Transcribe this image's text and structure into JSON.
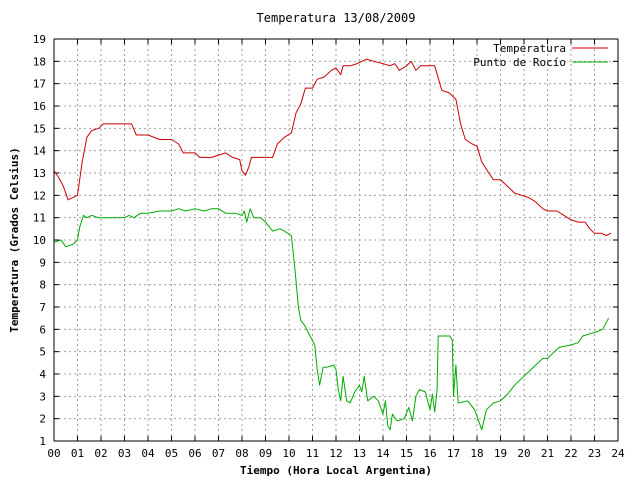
{
  "chart_data": {
    "type": "line",
    "title": "Temperatura 13/08/2009",
    "xlabel": "Tiempo (Hora Local Argentina)",
    "ylabel": "Temperatura (Grados Celsius)",
    "xlim": [
      0,
      24
    ],
    "ylim": [
      1,
      19
    ],
    "grid": true,
    "legend_position": "top-right",
    "x_ticks": [
      {
        "value": 0,
        "label": "00"
      },
      {
        "value": 1,
        "label": "01"
      },
      {
        "value": 2,
        "label": "02"
      },
      {
        "value": 3,
        "label": "03"
      },
      {
        "value": 4,
        "label": "04"
      },
      {
        "value": 5,
        "label": "05"
      },
      {
        "value": 6,
        "label": "06"
      },
      {
        "value": 7,
        "label": "07"
      },
      {
        "value": 8,
        "label": "08"
      },
      {
        "value": 9,
        "label": "09"
      },
      {
        "value": 10,
        "label": "10"
      },
      {
        "value": 11,
        "label": "11"
      },
      {
        "value": 12,
        "label": "12"
      },
      {
        "value": 13,
        "label": "13"
      },
      {
        "value": 14,
        "label": "14"
      },
      {
        "value": 15,
        "label": "15"
      },
      {
        "value": 16,
        "label": "16"
      },
      {
        "value": 17,
        "label": "17"
      },
      {
        "value": 18,
        "label": "18"
      },
      {
        "value": 19,
        "label": "19"
      },
      {
        "value": 20,
        "label": "20"
      },
      {
        "value": 21,
        "label": "21"
      },
      {
        "value": 22,
        "label": "22"
      },
      {
        "value": 23,
        "label": "23"
      },
      {
        "value": 24,
        "label": "24"
      }
    ],
    "y_ticks": [
      {
        "value": 1,
        "label": "1"
      },
      {
        "value": 2,
        "label": "2"
      },
      {
        "value": 3,
        "label": "3"
      },
      {
        "value": 4,
        "label": "4"
      },
      {
        "value": 5,
        "label": "5"
      },
      {
        "value": 6,
        "label": "6"
      },
      {
        "value": 7,
        "label": "7"
      },
      {
        "value": 8,
        "label": "8"
      },
      {
        "value": 9,
        "label": "9"
      },
      {
        "value": 10,
        "label": "10"
      },
      {
        "value": 11,
        "label": "11"
      },
      {
        "value": 12,
        "label": "12"
      },
      {
        "value": 13,
        "label": "13"
      },
      {
        "value": 14,
        "label": "14"
      },
      {
        "value": 15,
        "label": "15"
      },
      {
        "value": 16,
        "label": "16"
      },
      {
        "value": 17,
        "label": "17"
      },
      {
        "value": 18,
        "label": "18"
      },
      {
        "value": 19,
        "label": "19"
      }
    ],
    "series": [
      {
        "name": "Temperatura",
        "color": "#cc0000",
        "points": [
          [
            0.0,
            13.1
          ],
          [
            0.2,
            12.8
          ],
          [
            0.4,
            12.4
          ],
          [
            0.6,
            11.8
          ],
          [
            0.8,
            11.9
          ],
          [
            1.0,
            12.0
          ],
          [
            1.2,
            13.5
          ],
          [
            1.4,
            14.6
          ],
          [
            1.6,
            14.9
          ],
          [
            1.9,
            15.0
          ],
          [
            2.1,
            15.2
          ],
          [
            2.5,
            15.2
          ],
          [
            3.0,
            15.2
          ],
          [
            3.3,
            15.2
          ],
          [
            3.5,
            14.7
          ],
          [
            4.0,
            14.7
          ],
          [
            4.5,
            14.5
          ],
          [
            5.0,
            14.5
          ],
          [
            5.3,
            14.3
          ],
          [
            5.5,
            13.9
          ],
          [
            6.0,
            13.9
          ],
          [
            6.2,
            13.7
          ],
          [
            6.7,
            13.7
          ],
          [
            7.0,
            13.8
          ],
          [
            7.3,
            13.9
          ],
          [
            7.6,
            13.7
          ],
          [
            7.9,
            13.6
          ],
          [
            8.0,
            13.1
          ],
          [
            8.15,
            12.9
          ],
          [
            8.3,
            13.3
          ],
          [
            8.4,
            13.7
          ],
          [
            9.0,
            13.7
          ],
          [
            9.3,
            13.7
          ],
          [
            9.5,
            14.3
          ],
          [
            9.8,
            14.6
          ],
          [
            10.1,
            14.8
          ],
          [
            10.3,
            15.7
          ],
          [
            10.5,
            16.1
          ],
          [
            10.7,
            16.8
          ],
          [
            11.0,
            16.8
          ],
          [
            11.2,
            17.2
          ],
          [
            11.5,
            17.3
          ],
          [
            11.8,
            17.6
          ],
          [
            12.0,
            17.7
          ],
          [
            12.2,
            17.4
          ],
          [
            12.3,
            17.8
          ],
          [
            12.6,
            17.8
          ],
          [
            12.9,
            17.9
          ],
          [
            13.1,
            18.0
          ],
          [
            13.3,
            18.1
          ],
          [
            13.6,
            18.0
          ],
          [
            14.0,
            17.9
          ],
          [
            14.3,
            17.8
          ],
          [
            14.5,
            17.9
          ],
          [
            14.7,
            17.6
          ],
          [
            15.0,
            17.8
          ],
          [
            15.2,
            18.0
          ],
          [
            15.4,
            17.6
          ],
          [
            15.6,
            17.8
          ],
          [
            15.9,
            17.8
          ],
          [
            16.2,
            17.8
          ],
          [
            16.5,
            16.7
          ],
          [
            16.8,
            16.6
          ],
          [
            17.1,
            16.3
          ],
          [
            17.3,
            15.2
          ],
          [
            17.5,
            14.5
          ],
          [
            17.8,
            14.3
          ],
          [
            18.0,
            14.2
          ],
          [
            18.2,
            13.5
          ],
          [
            18.5,
            13.0
          ],
          [
            18.7,
            12.7
          ],
          [
            19.0,
            12.7
          ],
          [
            19.3,
            12.4
          ],
          [
            19.6,
            12.1
          ],
          [
            19.9,
            12.0
          ],
          [
            20.2,
            11.9
          ],
          [
            20.5,
            11.7
          ],
          [
            20.8,
            11.4
          ],
          [
            21.0,
            11.3
          ],
          [
            21.4,
            11.3
          ],
          [
            21.7,
            11.1
          ],
          [
            22.0,
            10.9
          ],
          [
            22.3,
            10.8
          ],
          [
            22.6,
            10.8
          ],
          [
            22.8,
            10.5
          ],
          [
            23.0,
            10.3
          ],
          [
            23.3,
            10.3
          ],
          [
            23.5,
            10.2
          ],
          [
            23.7,
            10.3
          ]
        ]
      },
      {
        "name": "Punto de Rocío",
        "color": "#00aa00",
        "points": [
          [
            0.0,
            9.9
          ],
          [
            0.3,
            10.0
          ],
          [
            0.5,
            9.7
          ],
          [
            0.8,
            9.8
          ],
          [
            1.0,
            10.0
          ],
          [
            1.1,
            10.6
          ],
          [
            1.25,
            11.1
          ],
          [
            1.4,
            11.0
          ],
          [
            1.6,
            11.1
          ],
          [
            1.9,
            11.0
          ],
          [
            2.3,
            11.0
          ],
          [
            2.7,
            11.0
          ],
          [
            3.0,
            11.0
          ],
          [
            3.2,
            11.1
          ],
          [
            3.4,
            11.0
          ],
          [
            3.7,
            11.2
          ],
          [
            4.0,
            11.2
          ],
          [
            4.5,
            11.3
          ],
          [
            5.0,
            11.3
          ],
          [
            5.3,
            11.4
          ],
          [
            5.6,
            11.3
          ],
          [
            6.0,
            11.4
          ],
          [
            6.4,
            11.3
          ],
          [
            6.7,
            11.4
          ],
          [
            7.0,
            11.4
          ],
          [
            7.3,
            11.2
          ],
          [
            7.7,
            11.2
          ],
          [
            8.0,
            11.1
          ],
          [
            8.1,
            11.3
          ],
          [
            8.2,
            10.8
          ],
          [
            8.35,
            11.4
          ],
          [
            8.5,
            11.0
          ],
          [
            8.8,
            11.0
          ],
          [
            9.0,
            10.8
          ],
          [
            9.3,
            10.4
          ],
          [
            9.6,
            10.5
          ],
          [
            9.8,
            10.4
          ],
          [
            10.1,
            10.2
          ],
          [
            10.25,
            8.7
          ],
          [
            10.4,
            7.0
          ],
          [
            10.5,
            6.4
          ],
          [
            10.65,
            6.2
          ],
          [
            10.9,
            5.7
          ],
          [
            11.1,
            5.3
          ],
          [
            11.2,
            4.2
          ],
          [
            11.3,
            3.5
          ],
          [
            11.45,
            4.3
          ],
          [
            11.6,
            4.3
          ],
          [
            11.9,
            4.4
          ],
          [
            12.0,
            4.2
          ],
          [
            12.1,
            3.3
          ],
          [
            12.2,
            2.8
          ],
          [
            12.3,
            3.9
          ],
          [
            12.45,
            2.8
          ],
          [
            12.6,
            2.7
          ],
          [
            12.8,
            3.2
          ],
          [
            13.0,
            3.5
          ],
          [
            13.1,
            3.2
          ],
          [
            13.2,
            3.9
          ],
          [
            13.35,
            2.8
          ],
          [
            13.6,
            3.0
          ],
          [
            13.8,
            2.8
          ],
          [
            14.0,
            2.2
          ],
          [
            14.1,
            2.8
          ],
          [
            14.2,
            1.7
          ],
          [
            14.3,
            1.5
          ],
          [
            14.4,
            2.2
          ],
          [
            14.6,
            1.9
          ],
          [
            14.9,
            2.0
          ],
          [
            15.1,
            2.5
          ],
          [
            15.25,
            1.9
          ],
          [
            15.4,
            3.0
          ],
          [
            15.55,
            3.3
          ],
          [
            15.8,
            3.2
          ],
          [
            16.0,
            2.4
          ],
          [
            16.1,
            3.1
          ],
          [
            16.2,
            2.3
          ],
          [
            16.3,
            3.3
          ],
          [
            16.35,
            5.7
          ],
          [
            16.6,
            5.7
          ],
          [
            16.85,
            5.7
          ],
          [
            16.95,
            5.5
          ],
          [
            17.0,
            3.0
          ],
          [
            17.1,
            4.4
          ],
          [
            17.2,
            2.7
          ],
          [
            17.6,
            2.8
          ],
          [
            17.9,
            2.4
          ],
          [
            18.1,
            1.8
          ],
          [
            18.2,
            1.5
          ],
          [
            18.4,
            2.4
          ],
          [
            18.7,
            2.7
          ],
          [
            19.0,
            2.8
          ],
          [
            19.3,
            3.1
          ],
          [
            19.6,
            3.5
          ],
          [
            20.0,
            3.9
          ],
          [
            20.3,
            4.2
          ],
          [
            20.6,
            4.5
          ],
          [
            20.8,
            4.7
          ],
          [
            21.0,
            4.7
          ],
          [
            21.3,
            5.0
          ],
          [
            21.5,
            5.2
          ],
          [
            22.0,
            5.3
          ],
          [
            22.3,
            5.4
          ],
          [
            22.5,
            5.7
          ],
          [
            22.8,
            5.8
          ],
          [
            23.1,
            5.9
          ],
          [
            23.35,
            6.0
          ],
          [
            23.6,
            6.5
          ]
        ]
      }
    ]
  }
}
